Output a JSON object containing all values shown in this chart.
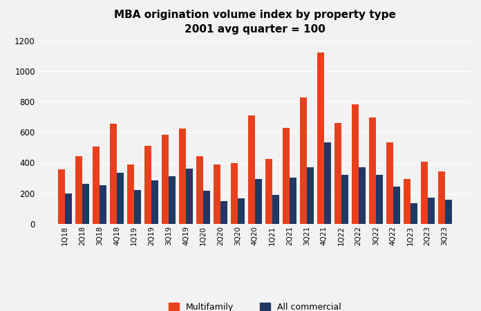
{
  "title_line1": "MBA origination volume index by property type",
  "title_line2": "2001 avg quarter = 100",
  "categories": [
    "1Q18",
    "2Q18",
    "3Q18",
    "4Q18",
    "1Q19",
    "2Q19",
    "3Q19",
    "4Q19",
    "1Q20",
    "2Q20",
    "3Q20",
    "4Q20",
    "1Q21",
    "2Q21",
    "3Q21",
    "4Q21",
    "1Q22",
    "2Q22",
    "3Q22",
    "4Q22",
    "1Q23",
    "2Q23",
    "3Q23"
  ],
  "multifamily": [
    355,
    445,
    505,
    655,
    390,
    510,
    585,
    625,
    445,
    390,
    400,
    710,
    425,
    630,
    825,
    1120,
    660,
    780,
    695,
    535,
    295,
    405,
    345
  ],
  "all_commercial": [
    200,
    260,
    255,
    335,
    220,
    285,
    310,
    360,
    215,
    150,
    165,
    295,
    190,
    305,
    370,
    535,
    320,
    370,
    320,
    245,
    135,
    170,
    160
  ],
  "multifamily_color": "#E8401C",
  "commercial_color": "#1F3864",
  "ylim": [
    0,
    1200
  ],
  "yticks": [
    0,
    200,
    400,
    600,
    800,
    1000,
    1200
  ],
  "fig_bg_color": "#F2F2F2",
  "plot_bg_color": "#F2F2F2",
  "legend_labels": [
    "Multifamily",
    "All commercial"
  ],
  "bar_width": 0.4,
  "figsize": [
    6.96,
    4.5
  ],
  "dpi": 100
}
